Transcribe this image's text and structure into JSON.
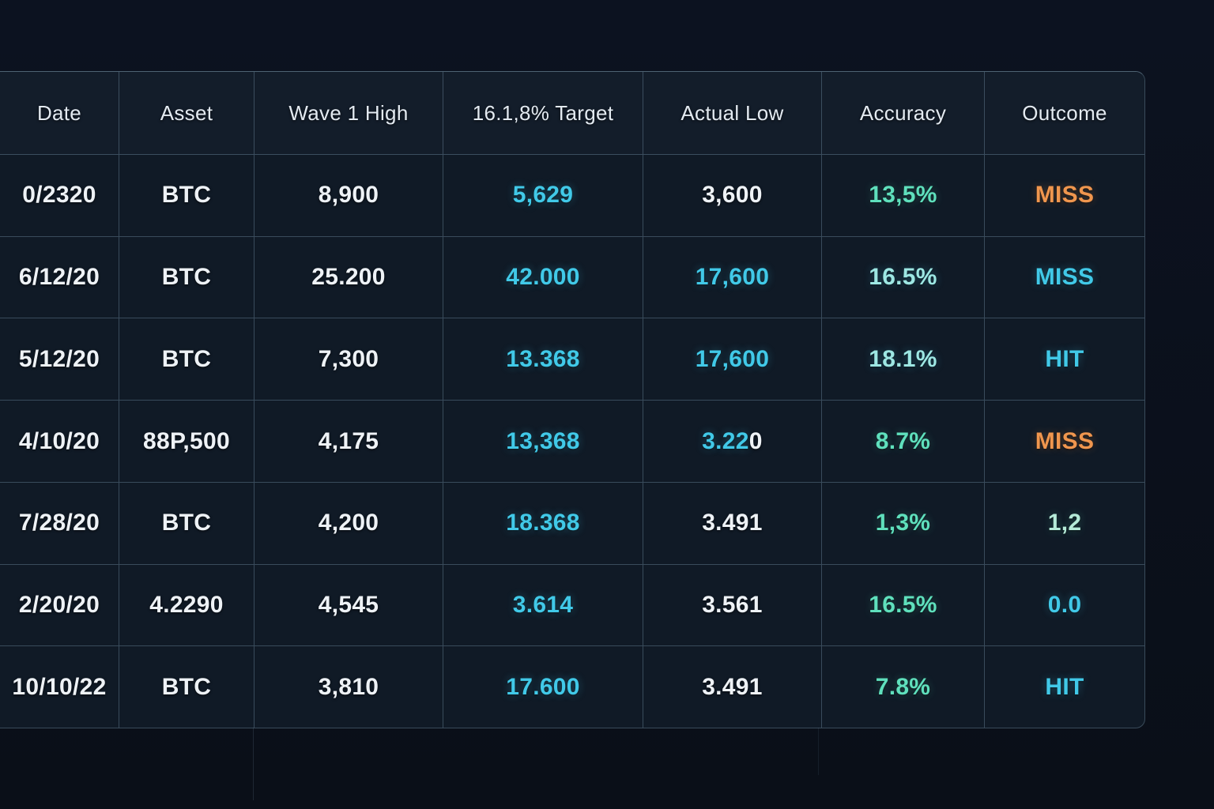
{
  "page": {
    "background": "#0a0f18",
    "cell_bg": "#101a26",
    "header_bg": "#131d2a",
    "border": "rgba(127,156,178,0.38)",
    "border_strong": "rgba(140,170,190,0.5)"
  },
  "table": {
    "columns": [
      {
        "id": "date",
        "label": "Date"
      },
      {
        "id": "asset",
        "label": "Asset"
      },
      {
        "id": "wave1high",
        "label": "Wave 1 High"
      },
      {
        "id": "target",
        "label": "16.1,8% Target"
      },
      {
        "id": "actuallow",
        "label": "Actual Low"
      },
      {
        "id": "accuracy",
        "label": "Accuracy"
      },
      {
        "id": "outcome",
        "label": "Outcome"
      }
    ],
    "colors": {
      "w": "#eef2f6",
      "c": "#41c9e8",
      "pc": "#9de7e3",
      "m": "#5fe0bd",
      "lm": "#b5ead8",
      "o": "#f0964e"
    },
    "rows": [
      {
        "cells": [
          {
            "t": "0/2320",
            "c": "w"
          },
          {
            "t": "BTC",
            "c": "w"
          },
          {
            "t": "8,900",
            "c": "w"
          },
          {
            "t": "5,629",
            "c": "c"
          },
          {
            "t": "3,600",
            "c": "w"
          },
          {
            "t": "13,5%",
            "c": "m"
          },
          {
            "t": "MISS",
            "c": "o"
          }
        ]
      },
      {
        "cells": [
          {
            "t": "6/12/20",
            "c": "w"
          },
          {
            "t": "BTC",
            "c": "w"
          },
          {
            "t": "25.200",
            "c": "w"
          },
          {
            "t": "42.000",
            "c": "c"
          },
          {
            "t": "17,600",
            "c": "c"
          },
          {
            "t": "16.5%",
            "c": "pc"
          },
          {
            "t": "MISS",
            "c": "c"
          }
        ]
      },
      {
        "cells": [
          {
            "t": "5/12/20",
            "c": "w"
          },
          {
            "t": "BTC",
            "c": "w"
          },
          {
            "t": "7,300",
            "c": "w"
          },
          {
            "t": "13.368",
            "c": "c"
          },
          {
            "t": "17,600",
            "c": "c"
          },
          {
            "t": "18.1%",
            "c": "pc"
          },
          {
            "t": "HIT",
            "c": "c"
          }
        ]
      },
      {
        "cells": [
          {
            "t": "4/10/20",
            "c": "w"
          },
          {
            "t": "88P,500",
            "c": "w"
          },
          {
            "t": "4,175",
            "c": "w"
          },
          {
            "t": "13,368",
            "c": "c"
          },
          {
            "parts": [
              {
                "t": "3.22",
                "c": "c"
              },
              {
                "t": "0",
                "c": "w"
              }
            ]
          },
          {
            "t": "8.7%",
            "c": "m"
          },
          {
            "t": "MISS",
            "c": "o"
          }
        ]
      },
      {
        "cells": [
          {
            "t": "7/28/20",
            "c": "w"
          },
          {
            "t": "BTC",
            "c": "w"
          },
          {
            "t": "4,200",
            "c": "w"
          },
          {
            "t": "18.368",
            "c": "c"
          },
          {
            "t": "3.491",
            "c": "w"
          },
          {
            "t": "1,3%",
            "c": "m"
          },
          {
            "t": "1,2",
            "c": "lm"
          }
        ]
      },
      {
        "cells": [
          {
            "t": "2/20/20",
            "c": "w"
          },
          {
            "t": "4.2290",
            "c": "w"
          },
          {
            "t": "4,545",
            "c": "w"
          },
          {
            "t": "3.614",
            "c": "c"
          },
          {
            "t": "3.561",
            "c": "w"
          },
          {
            "t": "16.5%",
            "c": "m"
          },
          {
            "t": "0.0",
            "c": "c"
          }
        ]
      },
      {
        "cells": [
          {
            "t": "10/10/22",
            "c": "w"
          },
          {
            "t": "BTC",
            "c": "w"
          },
          {
            "t": "3,810",
            "c": "w"
          },
          {
            "t": "17.600",
            "c": "c"
          },
          {
            "t": "3.491",
            "c": "w"
          },
          {
            "t": "7.8%",
            "c": "m"
          },
          {
            "t": "HIT",
            "c": "c"
          }
        ]
      }
    ]
  }
}
